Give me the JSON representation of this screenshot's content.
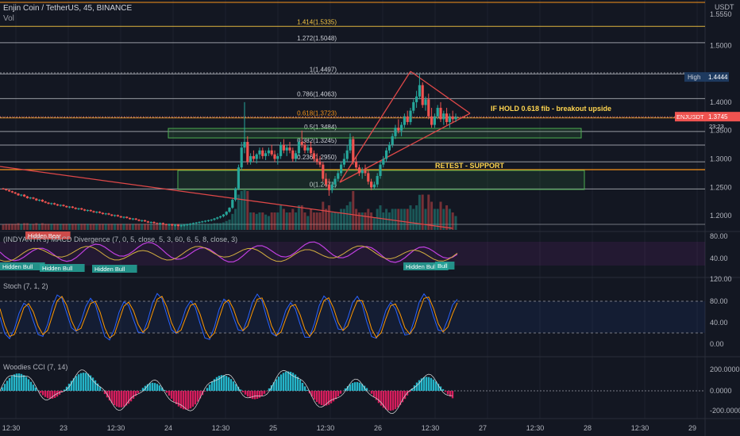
{
  "header": {
    "symbol_line": "Enjin Coin / TetherUS, 45, BINANCE",
    "vol_label": "Vol"
  },
  "colors": {
    "background": "#131722",
    "bull": "#26a69a",
    "bear": "#ef5350",
    "grid": "#1e222d",
    "fib_gold": "#f5c542",
    "fib_white": "#cfd2d9",
    "orange": "#f7931a",
    "trend_red": "#e04848",
    "zone_green": "#4caf50",
    "annotation_yellow": "#ffd54f",
    "macd_purple": "#9c27b0",
    "stoch_blue": "#2962ff",
    "stoch_orange": "#ff9800",
    "cci_cyan": "#26c6da",
    "cci_pink": "#e91e63"
  },
  "price_axis": {
    "currency": "USDT",
    "ticks": [
      "1.5550",
      "1.5000",
      "1.4000",
      "1.3500",
      "1.3000",
      "1.2500",
      "1.2000"
    ],
    "high_label": "High",
    "high_value": "1.4444",
    "symbol_tag": "ENJUSDT",
    "last_price": "1.3745",
    "countdown": "23:23"
  },
  "time_axis": {
    "ticks": [
      "12:30",
      "23",
      "12:30",
      "24",
      "12:30",
      "25",
      "12:30",
      "26",
      "12:30",
      "27",
      "12:30",
      "28",
      "12:30",
      "29"
    ]
  },
  "fib_levels": [
    {
      "label": "1.414(1.5335)",
      "price": 1.5335,
      "color": "gold"
    },
    {
      "label": "1.272(1.5048)",
      "price": 1.5048,
      "color": "white"
    },
    {
      "label": "1(1.4497)",
      "price": 1.4497,
      "color": "white"
    },
    {
      "label": "0.786(1.4063)",
      "price": 1.4063,
      "color": "white"
    },
    {
      "label": "0.618(1.3723)",
      "price": 1.3723,
      "color": "orange"
    },
    {
      "label": "0.5(1.3484)",
      "price": 1.3484,
      "color": "white"
    },
    {
      "label": "0.382(1.3245)",
      "price": 1.3245,
      "color": "white"
    },
    {
      "label": "0.236(1.2950)",
      "price": 1.295,
      "color": "white"
    },
    {
      "label": "0(1.2471)",
      "price": 1.2471,
      "color": "white"
    }
  ],
  "annotations": {
    "breakout": "IF HOLD 0.618 fib - breakout upside",
    "retest": "RETEST - SUPPORT"
  },
  "macd_panel": {
    "title": "(INDYANTR's) MACD Divergence (7, 0, 5, close, 5, 3, 60, 6, 5, 8, close, 3)",
    "ticks": [
      "80.00",
      "40.00"
    ],
    "labels": [
      "Hidden Bear",
      "Hidden Bull",
      "Hidden Bull",
      "Hidden Bull",
      "Hidden Bull",
      "Bull"
    ]
  },
  "stoch_panel": {
    "title": "Stoch (7, 1, 2)",
    "ticks": [
      "120.00",
      "80.00",
      "40.00",
      "0.00"
    ]
  },
  "cci_panel": {
    "title": "Woodies CCI (7, 14)",
    "ticks": [
      "200.0000",
      "0.0000",
      "-200.0000"
    ]
  },
  "chart_data": {
    "type": "candlestick",
    "symbol": "ENJUSDT",
    "timeframe": "45",
    "exchange": "BINANCE",
    "ylim": [
      1.175,
      1.58
    ],
    "x_range": [
      "Dec 22 12:30",
      "Dec 29"
    ],
    "candles_ohlc": [
      [
        1.248,
        1.249,
        1.246,
        1.247
      ],
      [
        1.247,
        1.248,
        1.244,
        1.245
      ],
      [
        1.245,
        1.246,
        1.242,
        1.243
      ],
      [
        1.243,
        1.244,
        1.24,
        1.241
      ],
      [
        1.241,
        1.242,
        1.238,
        1.239
      ],
      [
        1.239,
        1.24,
        1.235,
        1.236
      ],
      [
        1.236,
        1.238,
        1.234,
        1.237
      ],
      [
        1.237,
        1.238,
        1.233,
        1.234
      ],
      [
        1.234,
        1.235,
        1.23,
        1.231
      ],
      [
        1.231,
        1.233,
        1.229,
        1.232
      ],
      [
        1.232,
        1.233,
        1.229,
        1.23
      ],
      [
        1.23,
        1.231,
        1.226,
        1.227
      ],
      [
        1.227,
        1.229,
        1.225,
        1.228
      ],
      [
        1.228,
        1.229,
        1.224,
        1.225
      ],
      [
        1.225,
        1.226,
        1.222,
        1.223
      ],
      [
        1.223,
        1.224,
        1.22,
        1.221
      ],
      [
        1.221,
        1.223,
        1.219,
        1.222
      ],
      [
        1.222,
        1.223,
        1.219,
        1.22
      ],
      [
        1.22,
        1.221,
        1.217,
        1.218
      ],
      [
        1.218,
        1.22,
        1.216,
        1.219
      ],
      [
        1.219,
        1.22,
        1.216,
        1.217
      ],
      [
        1.217,
        1.218,
        1.214,
        1.215
      ],
      [
        1.215,
        1.217,
        1.213,
        1.216
      ],
      [
        1.216,
        1.217,
        1.213,
        1.214
      ],
      [
        1.214,
        1.215,
        1.211,
        1.212
      ],
      [
        1.212,
        1.214,
        1.21,
        1.213
      ],
      [
        1.213,
        1.214,
        1.21,
        1.211
      ],
      [
        1.211,
        1.212,
        1.208,
        1.209
      ],
      [
        1.209,
        1.211,
        1.207,
        1.21
      ],
      [
        1.21,
        1.211,
        1.207,
        1.208
      ],
      [
        1.208,
        1.209,
        1.205,
        1.206
      ],
      [
        1.206,
        1.208,
        1.204,
        1.207
      ],
      [
        1.207,
        1.208,
        1.204,
        1.205
      ],
      [
        1.205,
        1.206,
        1.202,
        1.203
      ],
      [
        1.203,
        1.205,
        1.201,
        1.204
      ],
      [
        1.204,
        1.205,
        1.201,
        1.202
      ],
      [
        1.202,
        1.203,
        1.199,
        1.2
      ],
      [
        1.2,
        1.202,
        1.198,
        1.201
      ],
      [
        1.201,
        1.202,
        1.198,
        1.199
      ],
      [
        1.199,
        1.2,
        1.196,
        1.197
      ],
      [
        1.197,
        1.199,
        1.195,
        1.198
      ],
      [
        1.198,
        1.199,
        1.195,
        1.196
      ],
      [
        1.196,
        1.197,
        1.193,
        1.194
      ],
      [
        1.194,
        1.196,
        1.192,
        1.195
      ],
      [
        1.195,
        1.196,
        1.192,
        1.193
      ],
      [
        1.193,
        1.194,
        1.19,
        1.191
      ],
      [
        1.191,
        1.193,
        1.189,
        1.192
      ],
      [
        1.192,
        1.193,
        1.189,
        1.19
      ],
      [
        1.19,
        1.191,
        1.187,
        1.188
      ],
      [
        1.188,
        1.19,
        1.186,
        1.189
      ],
      [
        1.189,
        1.19,
        1.186,
        1.187
      ],
      [
        1.187,
        1.188,
        1.185,
        1.186
      ],
      [
        1.186,
        1.188,
        1.184,
        1.187
      ],
      [
        1.187,
        1.188,
        1.184,
        1.185
      ],
      [
        1.185,
        1.186,
        1.183,
        1.184
      ],
      [
        1.184,
        1.186,
        1.182,
        1.185
      ],
      [
        1.185,
        1.186,
        1.182,
        1.183
      ],
      [
        1.183,
        1.185,
        1.181,
        1.184
      ],
      [
        1.184,
        1.185,
        1.181,
        1.182
      ],
      [
        1.182,
        1.184,
        1.18,
        1.183
      ],
      [
        1.183,
        1.185,
        1.181,
        1.184
      ],
      [
        1.184,
        1.186,
        1.182,
        1.185
      ],
      [
        1.185,
        1.187,
        1.183,
        1.186
      ],
      [
        1.186,
        1.188,
        1.184,
        1.187
      ],
      [
        1.187,
        1.189,
        1.185,
        1.188
      ],
      [
        1.188,
        1.19,
        1.186,
        1.189
      ],
      [
        1.189,
        1.191,
        1.187,
        1.19
      ],
      [
        1.19,
        1.192,
        1.188,
        1.191
      ],
      [
        1.191,
        1.193,
        1.189,
        1.192
      ],
      [
        1.192,
        1.194,
        1.19,
        1.193
      ],
      [
        1.193,
        1.196,
        1.191,
        1.195
      ],
      [
        1.195,
        1.198,
        1.193,
        1.197
      ],
      [
        1.197,
        1.2,
        1.195,
        1.199
      ],
      [
        1.199,
        1.203,
        1.197,
        1.202
      ],
      [
        1.202,
        1.208,
        1.2,
        1.207
      ],
      [
        1.207,
        1.215,
        1.205,
        1.214
      ],
      [
        1.214,
        1.23,
        1.212,
        1.228
      ],
      [
        1.228,
        1.25,
        1.225,
        1.248
      ],
      [
        1.248,
        1.29,
        1.245,
        1.285
      ],
      [
        1.285,
        1.33,
        1.28,
        1.32
      ],
      [
        1.32,
        1.4,
        1.31,
        1.33
      ],
      [
        1.33,
        1.34,
        1.29,
        1.295
      ],
      [
        1.295,
        1.31,
        1.29,
        1.305
      ],
      [
        1.305,
        1.315,
        1.295,
        1.3
      ],
      [
        1.3,
        1.31,
        1.292,
        1.308
      ],
      [
        1.308,
        1.32,
        1.3,
        1.315
      ],
      [
        1.315,
        1.32,
        1.3,
        1.305
      ],
      [
        1.305,
        1.315,
        1.298,
        1.31
      ],
      [
        1.31,
        1.32,
        1.305,
        1.315
      ],
      [
        1.315,
        1.325,
        1.305,
        1.308
      ],
      [
        1.308,
        1.315,
        1.295,
        1.3
      ],
      [
        1.3,
        1.31,
        1.29,
        1.305
      ],
      [
        1.305,
        1.33,
        1.3,
        1.325
      ],
      [
        1.325,
        1.335,
        1.31,
        1.315
      ],
      [
        1.315,
        1.325,
        1.305,
        1.32
      ],
      [
        1.32,
        1.33,
        1.31,
        1.315
      ],
      [
        1.315,
        1.32,
        1.295,
        1.3
      ],
      [
        1.3,
        1.315,
        1.295,
        1.31
      ],
      [
        1.31,
        1.335,
        1.305,
        1.33
      ],
      [
        1.33,
        1.35,
        1.32,
        1.325
      ],
      [
        1.325,
        1.33,
        1.31,
        1.315
      ],
      [
        1.315,
        1.325,
        1.31,
        1.32
      ],
      [
        1.32,
        1.33,
        1.305,
        1.31
      ],
      [
        1.31,
        1.315,
        1.295,
        1.3
      ],
      [
        1.3,
        1.31,
        1.29,
        1.295
      ],
      [
        1.295,
        1.305,
        1.285,
        1.29
      ],
      [
        1.29,
        1.295,
        1.26,
        1.265
      ],
      [
        1.265,
        1.275,
        1.25,
        1.255
      ],
      [
        1.255,
        1.265,
        1.235,
        1.245
      ],
      [
        1.245,
        1.26,
        1.24,
        1.255
      ],
      [
        1.255,
        1.27,
        1.25,
        1.265
      ],
      [
        1.265,
        1.28,
        1.26,
        1.275
      ],
      [
        1.275,
        1.295,
        1.27,
        1.29
      ],
      [
        1.29,
        1.31,
        1.285,
        1.3
      ],
      [
        1.3,
        1.325,
        1.295,
        1.315
      ],
      [
        1.315,
        1.345,
        1.31,
        1.335
      ],
      [
        1.335,
        1.34,
        1.29,
        1.295
      ],
      [
        1.295,
        1.305,
        1.28,
        1.285
      ],
      [
        1.285,
        1.29,
        1.27,
        1.275
      ],
      [
        1.275,
        1.285,
        1.265,
        1.28
      ],
      [
        1.28,
        1.29,
        1.27,
        1.275
      ],
      [
        1.275,
        1.28,
        1.255,
        1.26
      ],
      [
        1.26,
        1.265,
        1.245,
        1.25
      ],
      [
        1.25,
        1.26,
        1.2471,
        1.255
      ],
      [
        1.255,
        1.275,
        1.25,
        1.27
      ],
      [
        1.27,
        1.295,
        1.265,
        1.29
      ],
      [
        1.29,
        1.305,
        1.285,
        1.3
      ],
      [
        1.3,
        1.32,
        1.295,
        1.315
      ],
      [
        1.315,
        1.33,
        1.31,
        1.325
      ],
      [
        1.325,
        1.345,
        1.32,
        1.34
      ],
      [
        1.34,
        1.36,
        1.335,
        1.355
      ],
      [
        1.355,
        1.37,
        1.345,
        1.35
      ],
      [
        1.35,
        1.365,
        1.34,
        1.36
      ],
      [
        1.36,
        1.38,
        1.355,
        1.375
      ],
      [
        1.375,
        1.385,
        1.36,
        1.365
      ],
      [
        1.365,
        1.39,
        1.36,
        1.385
      ],
      [
        1.385,
        1.405,
        1.38,
        1.4
      ],
      [
        1.4,
        1.42,
        1.39,
        1.41
      ],
      [
        1.41,
        1.4497,
        1.405,
        1.43
      ],
      [
        1.43,
        1.435,
        1.39,
        1.395
      ],
      [
        1.395,
        1.41,
        1.385,
        1.405
      ],
      [
        1.405,
        1.415,
        1.37,
        1.375
      ],
      [
        1.375,
        1.39,
        1.355,
        1.36
      ],
      [
        1.36,
        1.38,
        1.355,
        1.375
      ],
      [
        1.375,
        1.395,
        1.37,
        1.39
      ],
      [
        1.39,
        1.4,
        1.365,
        1.37
      ],
      [
        1.37,
        1.385,
        1.36,
        1.38
      ],
      [
        1.38,
        1.39,
        1.36,
        1.365
      ],
      [
        1.365,
        1.38,
        1.355,
        1.375
      ],
      [
        1.375,
        1.385,
        1.365,
        1.37
      ],
      [
        1.37,
        1.38,
        1.365,
        1.3745
      ]
    ]
  }
}
